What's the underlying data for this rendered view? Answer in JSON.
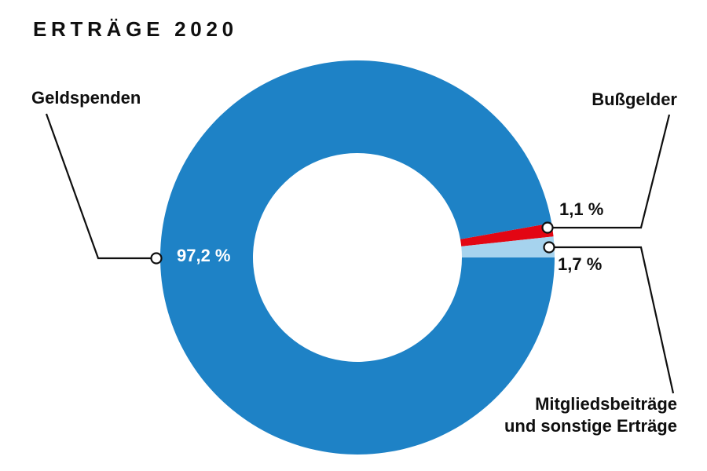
{
  "header": {
    "title": "ERTRÄGE 2020"
  },
  "chart_data": {
    "type": "pie",
    "donut": true,
    "title": "ERTRÄGE 2020",
    "unit": "%",
    "segments": [
      {
        "label": "Geldspenden",
        "value": 97.2,
        "display": "97,2 %",
        "color": "#1E82C6",
        "value_label_color": "#FFFFFF"
      },
      {
        "label": "Bußgelder",
        "value": 1.1,
        "display": "1,1 %",
        "color": "#E30613",
        "value_label_color": "#0F0F0F"
      },
      {
        "label": "Mitgliedsbeiträge und sonstige Erträge",
        "value": 1.7,
        "display": "1,7 %",
        "color": "#A6D3EE",
        "value_label_color": "#0F0F0F"
      }
    ],
    "layout": {
      "draw_order": [
        1,
        2,
        0
      ],
      "start_angle_deg": -10.08,
      "clockwise": true,
      "legend": "none",
      "label_style": "callout-lines-with-dot-markers"
    }
  },
  "labels": {
    "geldspenden": "Geldspenden",
    "bussgelder": "Bußgelder",
    "mitglieder_line1": "Mitgliedsbeiträge",
    "mitglieder_line2": "und sonstige Erträge"
  },
  "colors": {
    "background": "#FFFFFF",
    "text": "#0F0F0F",
    "callout_line": "#0F0F0F",
    "marker_fill": "#FFFFFF"
  }
}
